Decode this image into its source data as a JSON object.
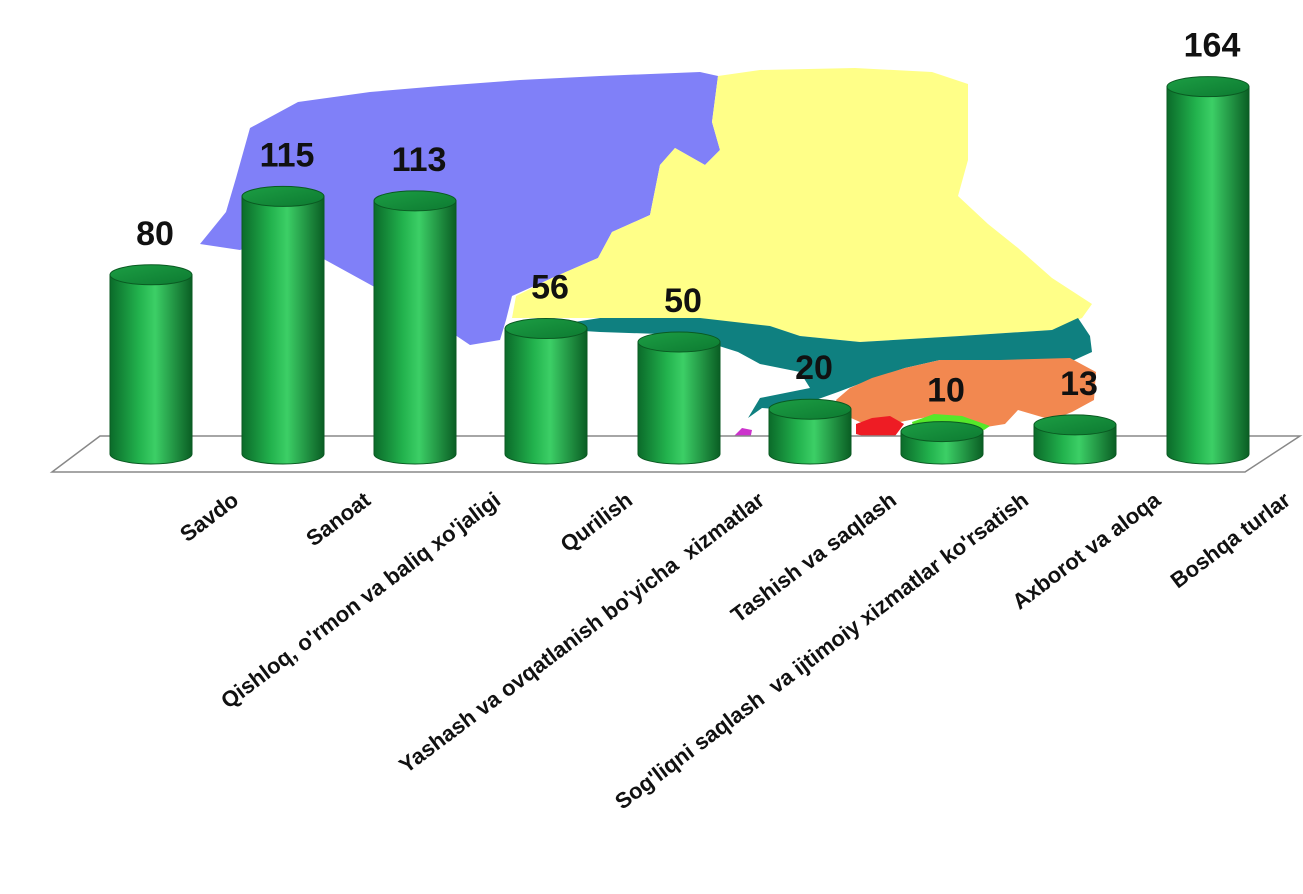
{
  "chart_data": {
    "type": "bar",
    "style": "3d-cylinder",
    "categories": [
      "Savdo",
      "Sanoat",
      "Qishloq, o'rmon va baliq xo'jaligi",
      "Qurilish",
      "Yashash va ovqatlanish bo'yicha  xizmatlar",
      "Tashish va saqlash",
      "Sog'liqni saqlash  va ijtimoiy xizmatlar ko'rsatish",
      "Axborot va aloqa",
      "Boshqa turlar"
    ],
    "values": [
      80,
      115,
      113,
      56,
      50,
      20,
      10,
      13,
      164
    ],
    "value_labels": [
      "80",
      "115",
      "113",
      "56",
      "50",
      "20",
      "10",
      "13",
      "164"
    ],
    "ylim": [
      0,
      175
    ],
    "grid": false,
    "legend": "none",
    "bar_color": "#1fa84a",
    "background": "map of regions (blue, yellow, teal, orange)"
  }
}
